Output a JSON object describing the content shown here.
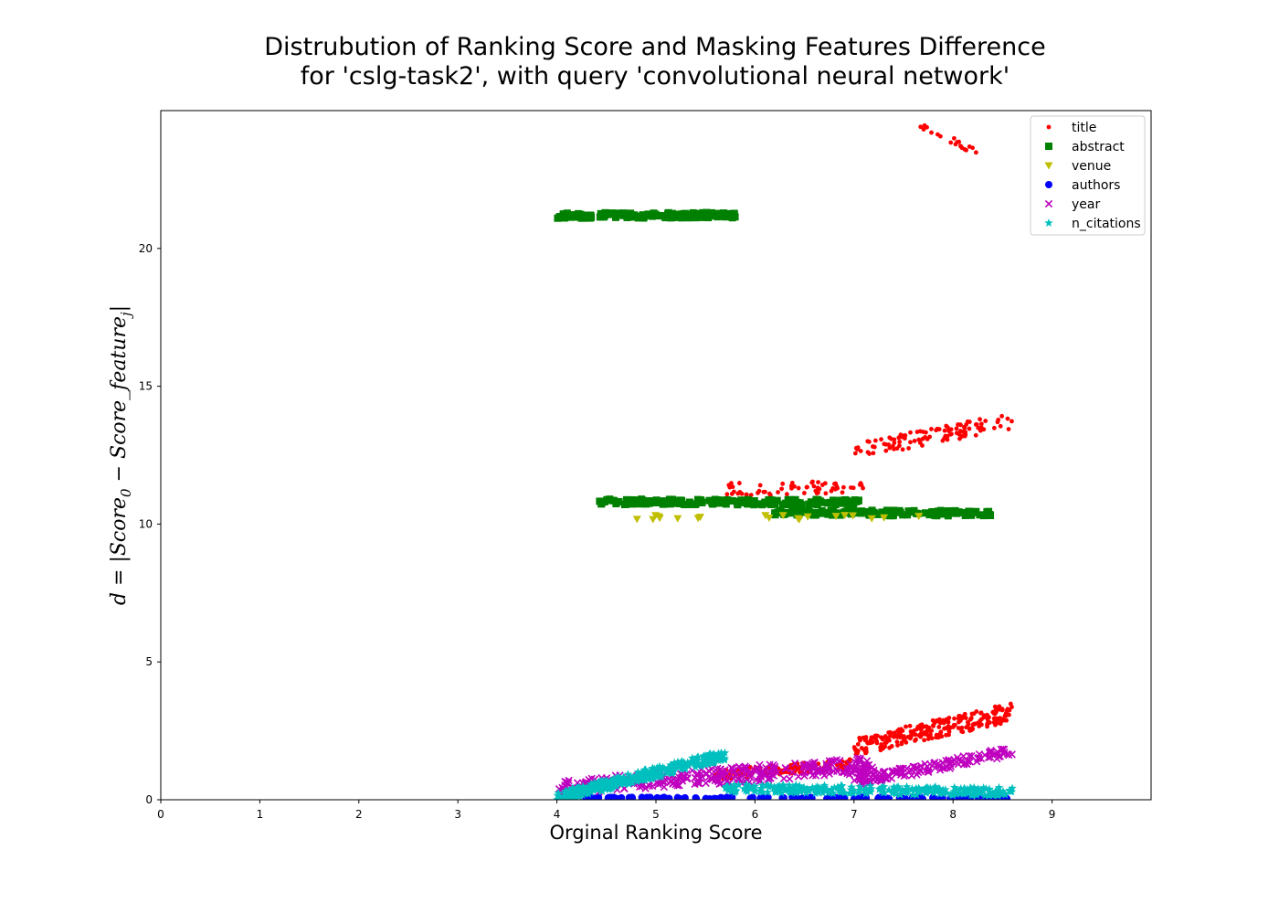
{
  "chart_data": {
    "type": "scatter",
    "title_lines": [
      "Distrubution of Ranking Score and Masking Features Difference",
      "for 'cslg-task2', with query 'convolutional neural network'"
    ],
    "xlabel": "Orginal Ranking Score",
    "ylabel": "d = |Score_0 − Score_feature_j|",
    "xlim": [
      0,
      10
    ],
    "ylim": [
      0,
      25
    ],
    "x_ticks": [
      0,
      1,
      2,
      3,
      4,
      5,
      6,
      7,
      8,
      9
    ],
    "y_ticks": [
      0,
      5,
      10,
      15,
      20
    ],
    "grid": false,
    "legend_position": "top-right",
    "series": [
      {
        "name": "title",
        "marker": "circle-small",
        "color": "#ff0000",
        "clusters": [
          {
            "x_range": [
              7.6,
              8.25
            ],
            "y_range": [
              23.4,
              24.6
            ],
            "slope": -0.9,
            "count": 20
          },
          {
            "x_range": [
              7.0,
              8.6
            ],
            "y_range": [
              12.3,
              14.1
            ],
            "slope": 0.6,
            "count": 110
          },
          {
            "x_range": [
              5.7,
              7.1
            ],
            "y_range": [
              10.8,
              11.8
            ],
            "slope": 0.1,
            "count": 60
          },
          {
            "x_range": [
              7.0,
              8.6
            ],
            "y_range": [
              1.5,
              3.6
            ],
            "slope": 0.6,
            "count": 260
          },
          {
            "x_range": [
              5.6,
              7.0
            ],
            "y_range": [
              0.6,
              1.6
            ],
            "slope": 0.4,
            "count": 150
          }
        ]
      },
      {
        "name": "abstract",
        "marker": "square",
        "color": "#008000",
        "clusters": [
          {
            "x_range": [
              4.0,
              5.8
            ],
            "y_range": [
              21.0,
              21.4
            ],
            "slope": 0.05,
            "count": 150
          },
          {
            "x_range": [
              4.4,
              7.1
            ],
            "y_range": [
              10.6,
              11.0
            ],
            "slope": -0.05,
            "count": 170
          },
          {
            "x_range": [
              6.2,
              8.4
            ],
            "y_range": [
              10.2,
              10.6
            ],
            "slope": -0.05,
            "count": 140
          }
        ]
      },
      {
        "name": "venue",
        "marker": "triangle-down",
        "color": "#bfbf00",
        "clusters": [
          {
            "x_range": [
              4.8,
              7.7
            ],
            "y_range": [
              10.1,
              10.4
            ],
            "slope": 0,
            "count": 20
          }
        ]
      },
      {
        "name": "authors",
        "marker": "circle",
        "color": "#0000ff",
        "clusters": [
          {
            "x_range": [
              4.0,
              8.6
            ],
            "y_range": [
              0.0,
              0.12
            ],
            "slope": 0,
            "count": 120
          }
        ]
      },
      {
        "name": "year",
        "marker": "x",
        "color": "#bf00bf",
        "clusters": [
          {
            "x_range": [
              4.0,
              7.2
            ],
            "y_range": [
              0.0,
              1.7
            ],
            "slope": 0.5,
            "count": 300
          },
          {
            "x_range": [
              7.0,
              8.6
            ],
            "y_range": [
              0.5,
              1.9
            ],
            "slope": 0.8,
            "count": 140
          }
        ]
      },
      {
        "name": "n_citations",
        "marker": "star",
        "color": "#00bfbf",
        "clusters": [
          {
            "x_range": [
              4.0,
              5.7
            ],
            "y_range": [
              0.0,
              1.7
            ],
            "slope": 0.9,
            "count": 320
          },
          {
            "x_range": [
              5.7,
              8.6
            ],
            "y_range": [
              0.0,
              0.7
            ],
            "slope": -0.2,
            "count": 260
          }
        ]
      }
    ]
  }
}
